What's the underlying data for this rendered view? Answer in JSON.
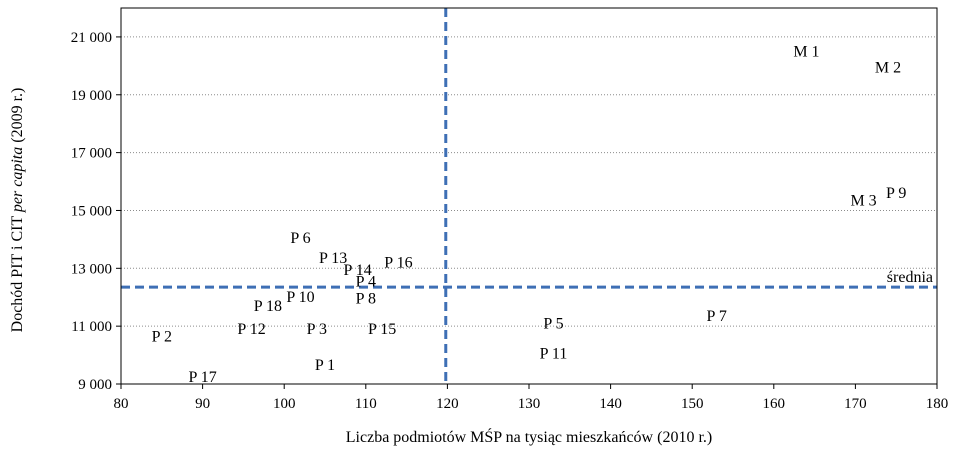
{
  "chart_data": {
    "type": "scatter",
    "xlabel": "Liczba podmiotów MŚP na tysiąc mieszkańców (2010 r.)",
    "ylabel_parts": [
      "Dochód PIT i CIT ",
      "per capita",
      " (2009 r.)"
    ],
    "xlim": [
      80,
      180
    ],
    "ylim": [
      9000,
      22000
    ],
    "xticks": [
      80,
      90,
      100,
      110,
      120,
      130,
      140,
      150,
      160,
      170,
      180
    ],
    "yticks": [
      9000,
      11000,
      13000,
      15000,
      17000,
      19000,
      21000
    ],
    "ytick_labels": [
      "9 000",
      "11 000",
      "13 000",
      "15 000",
      "17 000",
      "19 000",
      "21 000"
    ],
    "grid": "horizontal-dotted",
    "mean_x": 119.8,
    "mean_y": 12350,
    "mean_label": "średnia",
    "points": [
      {
        "label": "M 1",
        "x": 164,
        "y": 20500
      },
      {
        "label": "M 2",
        "x": 174,
        "y": 19950
      },
      {
        "label": "M 3",
        "x": 171,
        "y": 15350
      },
      {
        "label": "P 9",
        "x": 175,
        "y": 15600
      },
      {
        "label": "P 7",
        "x": 153,
        "y": 11350
      },
      {
        "label": "P 5",
        "x": 133,
        "y": 11100
      },
      {
        "label": "P 11",
        "x": 133,
        "y": 10050
      },
      {
        "label": "P 6",
        "x": 102,
        "y": 14050
      },
      {
        "label": "P 13",
        "x": 106,
        "y": 13350
      },
      {
        "label": "P 14",
        "x": 109,
        "y": 12950
      },
      {
        "label": "P 16",
        "x": 114,
        "y": 13200
      },
      {
        "label": "P 4",
        "x": 110,
        "y": 12550
      },
      {
        "label": "P 8",
        "x": 110,
        "y": 11950
      },
      {
        "label": "P 10",
        "x": 102,
        "y": 12000
      },
      {
        "label": "P 18",
        "x": 98,
        "y": 11700
      },
      {
        "label": "P 2",
        "x": 85,
        "y": 10650
      },
      {
        "label": "P 12",
        "x": 96,
        "y": 10900
      },
      {
        "label": "P 3",
        "x": 104,
        "y": 10900
      },
      {
        "label": "P 15",
        "x": 112,
        "y": 10900
      },
      {
        "label": "P 1",
        "x": 105,
        "y": 9650
      },
      {
        "label": "P 17",
        "x": 90,
        "y": 9250
      }
    ],
    "colors": {
      "mean_lines": "#3e6fb5",
      "grid": "#8c8c8c",
      "text": "#000000"
    }
  }
}
